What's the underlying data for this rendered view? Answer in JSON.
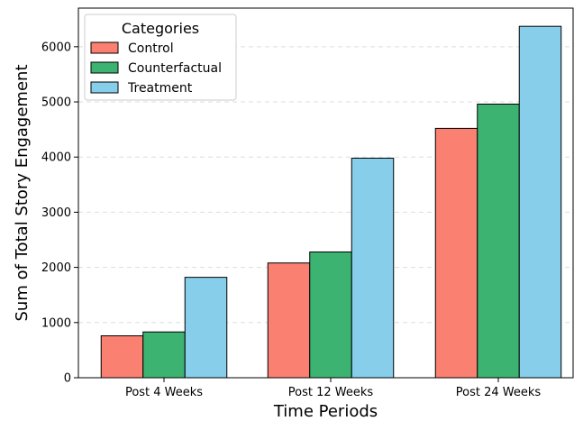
{
  "chart_data": {
    "type": "bar",
    "title": "",
    "xlabel": "Time Periods",
    "ylabel": "Sum of Total Story Engagement",
    "categories": [
      "Post 4 Weeks",
      "Post 12 Weeks",
      "Post 24 Weeks"
    ],
    "series": [
      {
        "name": "Control",
        "color": "#FA8072",
        "values": [
          760,
          2080,
          4520
        ]
      },
      {
        "name": "Counterfactual",
        "color": "#3CB371",
        "values": [
          830,
          2280,
          4960
        ]
      },
      {
        "name": "Treatment",
        "color": "#87CEEB",
        "values": [
          1820,
          3980,
          6370
        ]
      }
    ],
    "ylim": [
      0,
      6700
    ],
    "yticks": [
      0,
      1000,
      2000,
      3000,
      4000,
      5000,
      6000
    ],
    "grid": "horizontal dashed",
    "legend": {
      "title": "Categories",
      "placement": "top-left"
    }
  }
}
